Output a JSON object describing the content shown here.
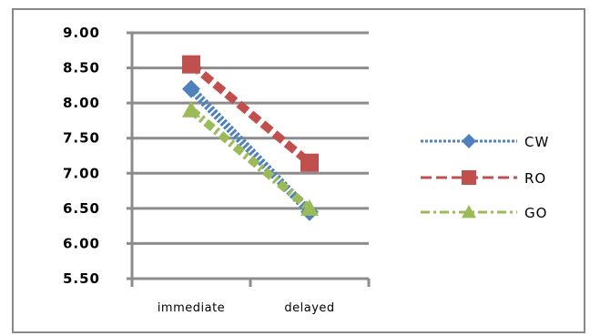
{
  "chart_data": {
    "type": "line",
    "categories": [
      "immediate",
      "delayed"
    ],
    "ylim": [
      5.5,
      9.0
    ],
    "yticks": [
      "9.00",
      "8.50",
      "8.00",
      "7.50",
      "7.00",
      "6.50",
      "6.00",
      "5.50"
    ],
    "grid": true,
    "legend_position": "right",
    "series": [
      {
        "name": "CW",
        "values": [
          8.2,
          6.45
        ],
        "color": "#4f81bd",
        "marker": "diamond",
        "dash": "dotted"
      },
      {
        "name": "RO",
        "values": [
          8.55,
          7.15
        ],
        "color": "#c0504d",
        "marker": "square",
        "dash": "dashed"
      },
      {
        "name": "GO",
        "values": [
          7.9,
          6.5
        ],
        "color": "#9bbb59",
        "marker": "triangle",
        "dash": "dashdot"
      }
    ]
  }
}
